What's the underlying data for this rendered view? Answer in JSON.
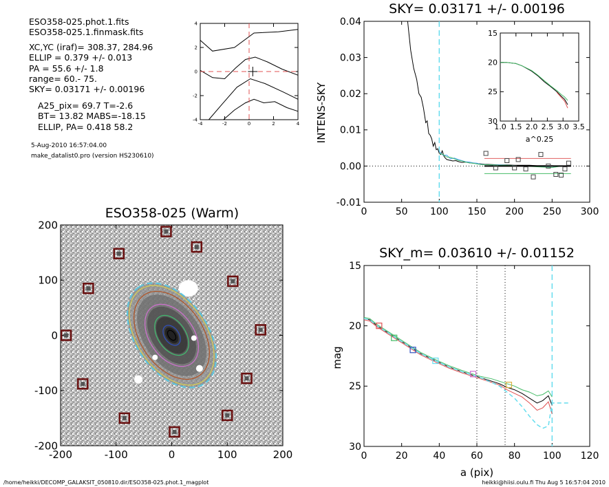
{
  "header_info": {
    "lines": [
      "ESO358-025.phot.1.fits",
      "ESO358-025.1.finmask.fits",
      "XC,YC (iraf)=   308.37, 284.96",
      "ELLIP = 0.379 +/- 0.013",
      "PA    = 55.6 +/-   1.8",
      "range=   60.-   75.",
      "SKY= 0.03171 +/- 0.00196",
      "A25_pix= 69.7   T=-2.6",
      "BT=  13.82   MABS=-18.15",
      "ELLIP, PA= 0.418   58.2",
      "5-Aug-2010 16:57:04.00",
      "make_datalist0.pro (version HS230610)"
    ]
  },
  "footer": {
    "left": "/home/heikki/DECOMP_GALAKSIT_050810.dir/ESO358-025.phot.1_magplot",
    "right": "heikki@hiisi.oulu.fi  Thu Aug  5 16:57:04 2010"
  },
  "chart_data": [
    {
      "id": "center_contour",
      "type": "line",
      "title": "",
      "xlim": [
        -4,
        4
      ],
      "ylim": [
        -4,
        4
      ],
      "xticks": [
        -4,
        -2,
        0,
        2,
        4
      ],
      "yticks": [
        -4,
        -2,
        0,
        2,
        4
      ],
      "crosshair": {
        "x": 0,
        "y": 0,
        "color": "#e05050"
      },
      "marker": {
        "x": 0.3,
        "y": 0
      },
      "series": [
        {
          "x": [
            -4,
            -3,
            -1.2,
            0.4,
            2.4,
            4
          ],
          "y": [
            2.6,
            1.7,
            2.0,
            3.2,
            3.3,
            3.5
          ]
        },
        {
          "x": [
            -4,
            -3,
            -2,
            -1.1,
            -0.3,
            0.5,
            1.5,
            2.7,
            4
          ],
          "y": [
            0.1,
            -0.5,
            -0.6,
            0.3,
            1.0,
            1.2,
            0.8,
            0.2,
            -0.3
          ]
        },
        {
          "x": [
            -3.3,
            -2.2,
            -1.0,
            0.1,
            1.3,
            2.8,
            4
          ],
          "y": [
            -4,
            -2.7,
            -1.3,
            -0.6,
            -1.0,
            -1.7,
            -2.3
          ]
        },
        {
          "x": [
            -2.1,
            -1.2,
            -0.3,
            0.4,
            1.2,
            2.1,
            3.1,
            4
          ],
          "y": [
            -4,
            -3.2,
            -2.6,
            -2.3,
            -2.6,
            -2.5,
            -3.0,
            -3.3
          ]
        }
      ]
    },
    {
      "id": "sky_profile",
      "type": "line",
      "title": "SKY= 0.03171 +/- 0.00196",
      "xlabel": "",
      "ylabel": "INTENS-SKY",
      "xlim": [
        0,
        300
      ],
      "ylim": [
        -0.01,
        0.04
      ],
      "xticks": [
        0,
        50,
        100,
        150,
        200,
        250,
        300
      ],
      "yticks": [
        -0.01,
        0.0,
        0.01,
        0.02,
        0.03,
        0.04
      ],
      "ytick_labels": [
        "-0.01",
        "0.00",
        "0.01",
        "0.02",
        "0.03",
        "0.04"
      ],
      "vline": 100,
      "series": [
        {
          "color": "#000000",
          "x": [
            58,
            62,
            66,
            70,
            73,
            76,
            79,
            82,
            84,
            86,
            88,
            90,
            92,
            94,
            96,
            98,
            100,
            102,
            104,
            106,
            108,
            110,
            114,
            118,
            122,
            126,
            130,
            135,
            140,
            145,
            150,
            155,
            160,
            170,
            180,
            190,
            200,
            210,
            220,
            230,
            240,
            250,
            260,
            270
          ],
          "y": [
            0.04,
            0.032,
            0.027,
            0.024,
            0.02,
            0.019,
            0.016,
            0.012,
            0.0125,
            0.009,
            0.0085,
            0.0075,
            0.0055,
            0.0065,
            0.0045,
            0.0048,
            0.0035,
            0.0032,
            0.0042,
            0.0028,
            0.0022,
            0.0018,
            0.0016,
            0.0014,
            0.0015,
            0.0012,
            0.001,
            0.0011,
            0.0009,
            0.0008,
            0.0007,
            0.0006,
            0.0005,
            0.0004,
            0.0003,
            0.0003,
            0.0002,
            0.0002,
            0.0002,
            0.0001,
            0.0001,
            0.0001,
            0.0,
            0.0
          ]
        },
        {
          "color": "#4aa0ff",
          "x": [
            100,
            105,
            110,
            115,
            120,
            125,
            130,
            135,
            140,
            145,
            150,
            155,
            160,
            170,
            180,
            190,
            200,
            210,
            220,
            230,
            240,
            250,
            260,
            270
          ],
          "y": [
            0.004,
            0.003,
            0.003,
            0.002,
            0.0022,
            0.0018,
            0.0015,
            0.0012,
            0.0011,
            0.0009,
            0.0008,
            0.0005,
            0.0004,
            0.0003,
            0.0003,
            0.0002,
            0.0001,
            0.0,
            0.0,
            0.0,
            -0.0002,
            -0.0004,
            0.0,
            0.0
          ]
        },
        {
          "color": "#44bb66",
          "x": [
            100,
            105,
            110,
            115,
            120,
            125,
            130,
            135,
            140,
            145,
            150,
            155,
            160,
            170,
            180,
            190,
            200,
            210,
            220,
            230,
            240,
            250,
            260,
            270
          ],
          "y": [
            0.0035,
            0.0032,
            0.0025,
            0.0024,
            0.002,
            0.0016,
            0.0014,
            0.0011,
            0.0009,
            0.0008,
            0.0006,
            0.0004,
            0.0004,
            0.0003,
            0.0002,
            0.0002,
            0.0001,
            0.0,
            -0.0001,
            -0.0002,
            -0.0003,
            -0.0004,
            -0.0001,
            0.0
          ]
        },
        {
          "color": "#000000",
          "x": [
            160,
            275
          ],
          "y": [
            0.0,
            0.0
          ]
        },
        {
          "color": "#e06060",
          "x": [
            160,
            275
          ],
          "y": [
            0.0021,
            0.0021
          ]
        },
        {
          "color": "#44bb66",
          "x": [
            160,
            275
          ],
          "y": [
            -0.0021,
            -0.0021
          ]
        }
      ],
      "points": {
        "x": [
          162,
          175,
          190,
          200,
          205,
          215,
          225,
          235,
          245,
          255,
          262,
          267,
          272
        ],
        "y": [
          0.0035,
          -0.0005,
          0.0015,
          -0.0005,
          0.0018,
          -0.0008,
          -0.003,
          0.0032,
          0.0,
          -0.0023,
          -0.0025,
          -0.0008,
          0.0008
        ]
      },
      "inset": {
        "xlabel": "a^0.25",
        "xlim": [
          1.0,
          3.5
        ],
        "ylim": [
          15,
          30
        ],
        "xticks": [
          1.0,
          1.5,
          2.0,
          2.5,
          3.0,
          3.5
        ],
        "xtick_labels": [
          "1.0",
          "1.5",
          "2.0",
          "2.5",
          "3.0",
          "3.5"
        ],
        "yticks": [
          15,
          20,
          25,
          30
        ],
        "series": [
          {
            "color": "#000000",
            "x": [
              1.0,
              1.2,
              1.5,
              1.7,
              2.0,
              2.2,
              2.4,
              2.6,
              2.8,
              2.95,
              3.05,
              3.15
            ],
            "y": [
              20.0,
              20.0,
              20.2,
              20.6,
              21.5,
              22.3,
              23.3,
              24.1,
              25.0,
              25.8,
              26.3,
              27.2
            ]
          },
          {
            "color": "#e05050",
            "x": [
              2.8,
              2.95,
              3.05,
              3.15
            ],
            "y": [
              25.1,
              26.0,
              26.6,
              27.8
            ]
          },
          {
            "color": "#44bb66",
            "x": [
              1.0,
              1.2,
              1.5,
              1.7,
              2.0,
              2.2,
              2.4,
              2.6,
              2.8,
              2.95,
              3.05,
              3.15
            ],
            "y": [
              20.0,
              20.0,
              20.2,
              20.6,
              21.4,
              22.2,
              23.1,
              24.0,
              24.8,
              25.5,
              25.9,
              26.5
            ]
          }
        ]
      }
    },
    {
      "id": "galaxy_image",
      "type": "scatter",
      "title": "ESO358-025 (Warm)",
      "xlim": [
        -200,
        200
      ],
      "ylim": [
        -200,
        200
      ],
      "xticks": [
        -200,
        -100,
        0,
        100,
        200
      ],
      "yticks": [
        -200,
        -100,
        0,
        100,
        200
      ],
      "center": {
        "x": 0,
        "y": 0
      },
      "ellipse_pa_deg": 55.6,
      "ellipses": [
        {
          "a": 105,
          "b": 65,
          "color": "#5ac8e0",
          "dash": true
        },
        {
          "a": 100,
          "b": 62,
          "color": "#d8d050",
          "dash": false
        },
        {
          "a": 88,
          "b": 56,
          "color": "#b05020",
          "dash": false
        },
        {
          "a": 62,
          "b": 40,
          "color": "#d070d0",
          "dash": false
        },
        {
          "a": 40,
          "b": 25,
          "color": "#40c070",
          "dash": false
        },
        {
          "a": 20,
          "b": 13,
          "color": "#3050c0",
          "dash": false
        },
        {
          "a": 10,
          "b": 6,
          "color": "#000000",
          "dash": false
        }
      ],
      "sky_boxes": {
        "x": [
          -10,
          45,
          -95,
          110,
          -150,
          -190,
          160,
          -160,
          135,
          -85,
          100,
          5
        ],
        "y": [
          188,
          160,
          148,
          98,
          85,
          0,
          10,
          -88,
          -78,
          -150,
          -145,
          -175
        ]
      }
    },
    {
      "id": "mag_profile",
      "type": "line",
      "title": "SKY_m=  0.03610 +/- 0.01152",
      "xlabel": "a (pix)",
      "ylabel": "mag",
      "xlim": [
        0,
        120
      ],
      "ylim": [
        15,
        30
      ],
      "xticks": [
        0,
        20,
        40,
        60,
        80,
        100,
        120
      ],
      "yticks": [
        15,
        20,
        25,
        30
      ],
      "vlines_dotted": [
        60,
        75
      ],
      "vline_dashed": 100,
      "series": [
        {
          "color": "#000000",
          "x": [
            0,
            3,
            7,
            12,
            18,
            25,
            30,
            38,
            45,
            52,
            58,
            62,
            68,
            72,
            76,
            80,
            84,
            88,
            92,
            95,
            98,
            100
          ],
          "y": [
            19.4,
            19.5,
            20.0,
            20.5,
            21.1,
            21.8,
            22.3,
            22.9,
            23.4,
            23.8,
            24.1,
            24.3,
            24.6,
            24.8,
            25.1,
            25.3,
            25.6,
            26.0,
            26.4,
            26.2,
            25.8,
            26.6
          ]
        },
        {
          "color": "#44bb66",
          "x": [
            0,
            3,
            7,
            12,
            18,
            25,
            30,
            38,
            45,
            52,
            58,
            62,
            68,
            72,
            76,
            80,
            84,
            88,
            92,
            95,
            98,
            100
          ],
          "y": [
            19.3,
            19.4,
            19.9,
            20.4,
            21.0,
            21.7,
            22.2,
            22.8,
            23.3,
            23.7,
            24.0,
            24.2,
            24.4,
            24.6,
            24.8,
            25.0,
            25.3,
            25.5,
            25.8,
            25.7,
            25.4,
            25.9
          ]
        },
        {
          "color": "#e05050",
          "x": [
            0,
            3,
            7,
            12,
            18,
            25,
            30,
            38,
            45,
            52,
            58,
            62,
            68,
            72,
            76,
            80,
            84,
            88,
            92,
            95,
            98,
            100
          ],
          "y": [
            19.5,
            19.6,
            20.1,
            20.6,
            21.2,
            21.9,
            22.4,
            23.0,
            23.5,
            23.9,
            24.2,
            24.4,
            24.7,
            24.9,
            25.3,
            25.6,
            25.9,
            26.4,
            27.0,
            26.8,
            26.3,
            27.3
          ]
        },
        {
          "color": "#66ddee",
          "x": [
            0,
            3,
            7,
            12,
            18,
            25,
            30,
            38,
            45,
            52,
            58,
            62,
            68,
            72,
            76,
            80,
            84,
            88,
            92,
            95,
            98,
            100,
            105,
            110
          ],
          "y": [
            19.4,
            19.5,
            20.0,
            20.5,
            21.1,
            21.8,
            22.3,
            22.9,
            23.4,
            23.8,
            24.1,
            24.3,
            24.7,
            25.0,
            25.5,
            26.0,
            26.7,
            27.5,
            28.2,
            28.5,
            28.3,
            26.4,
            26.4,
            26.4
          ]
        }
      ],
      "points": [
        {
          "x": 8,
          "y": 20.0,
          "color": "#e05050"
        },
        {
          "x": 16,
          "y": 21.0,
          "color": "#44bb66"
        },
        {
          "x": 26,
          "y": 22.0,
          "color": "#3050c0"
        },
        {
          "x": 38,
          "y": 22.9,
          "color": "#66ddee"
        },
        {
          "x": 58,
          "y": 24.0,
          "color": "#d070d0"
        },
        {
          "x": 77,
          "y": 24.9,
          "color": "#d8b040"
        }
      ]
    }
  ]
}
